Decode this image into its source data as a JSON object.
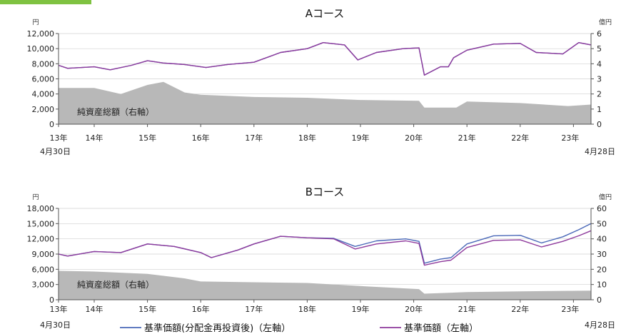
{
  "colors": {
    "nav_line": "#4a68b8",
    "price_line": "#8e3a9c",
    "net_assets_area": "#b8b8b8",
    "axis": "#555555",
    "grid": "#d0d0d0",
    "corner_tab": "#7fc241"
  },
  "legend": {
    "nav_reinvested": "基準価額(分配金再投資後)（左軸）",
    "nav": "基準価額（左軸）"
  },
  "chart_data": [
    {
      "type": "line",
      "title": "Aコース",
      "left_unit": "円",
      "right_unit": "億円",
      "area_label": "純資産総額（右軸）",
      "start_label": "4月30日",
      "end_label": "4月28日",
      "x_tick_labels": [
        "13年",
        "14年",
        "15年",
        "16年",
        "17年",
        "18年",
        "19年",
        "20年",
        "21年",
        "22年",
        "23年"
      ],
      "x_ticks": [
        2013.33,
        2014,
        2015,
        2016,
        2017,
        2018,
        2019,
        2020,
        2021,
        2022,
        2023
      ],
      "x_range": [
        2013.33,
        2023.33
      ],
      "ylim_left": [
        0,
        12000
      ],
      "yticks_left": [
        0,
        2000,
        4000,
        6000,
        8000,
        10000,
        12000
      ],
      "ytick_labels_left": [
        "0",
        "2,000",
        "4,000",
        "6,000",
        "8,000",
        "10,000",
        "12,000"
      ],
      "ylim_right": [
        0,
        6
      ],
      "yticks_right": [
        0,
        1,
        2,
        3,
        4,
        5,
        6
      ],
      "ytick_labels_right": [
        "0",
        "1",
        "2",
        "3",
        "4",
        "5",
        "6"
      ],
      "series": [
        {
          "key": "nav_reinvested",
          "axis": "left",
          "x": [
            2013.33,
            2013.5,
            2014,
            2014.3,
            2014.7,
            2015,
            2015.3,
            2015.7,
            2016.1,
            2016.5,
            2017,
            2017.5,
            2018,
            2018.3,
            2018.7,
            2018.95,
            2019.3,
            2019.8,
            2020.1,
            2020.2,
            2020.5,
            2020.65,
            2020.75,
            2021,
            2021.5,
            2022,
            2022.3,
            2022.8,
            2023.1,
            2023.33
          ],
          "y": [
            7800,
            7400,
            7600,
            7200,
            7800,
            8400,
            8100,
            7900,
            7500,
            7900,
            8200,
            9500,
            10000,
            10800,
            10500,
            8500,
            9500,
            10000,
            10100,
            6500,
            7600,
            7600,
            8800,
            9800,
            10600,
            10700,
            9500,
            9300,
            10800,
            10500
          ]
        },
        {
          "key": "nav",
          "axis": "left",
          "x": [
            2013.33,
            2013.5,
            2014,
            2014.3,
            2014.7,
            2015,
            2015.3,
            2015.7,
            2016.1,
            2016.5,
            2017,
            2017.5,
            2018,
            2018.3,
            2018.7,
            2018.95,
            2019.3,
            2019.8,
            2020.1,
            2020.2,
            2020.5,
            2020.65,
            2020.75,
            2021,
            2021.5,
            2022,
            2022.3,
            2022.8,
            2023.1,
            2023.33
          ],
          "y": [
            7800,
            7400,
            7600,
            7200,
            7800,
            8400,
            8100,
            7900,
            7500,
            7900,
            8200,
            9500,
            10000,
            10800,
            10500,
            8500,
            9500,
            10000,
            10100,
            6500,
            7600,
            7600,
            8800,
            9800,
            10600,
            10700,
            9500,
            9300,
            10800,
            10500
          ]
        },
        {
          "key": "net_assets",
          "axis": "right",
          "x": [
            2013.33,
            2014,
            2014.5,
            2015,
            2015.3,
            2015.7,
            2016,
            2017,
            2018,
            2019,
            2020.1,
            2020.2,
            2020.8,
            2021,
            2022,
            2022.9,
            2023.33
          ],
          "y": [
            2.4,
            2.4,
            2.0,
            2.6,
            2.8,
            2.1,
            1.95,
            1.8,
            1.75,
            1.6,
            1.55,
            1.1,
            1.1,
            1.5,
            1.4,
            1.2,
            1.3
          ]
        }
      ]
    },
    {
      "type": "line",
      "title": "Bコース",
      "left_unit": "円",
      "right_unit": "億円",
      "area_label": "純資産総額（右軸）",
      "start_label": "4月30日",
      "end_label": "4月28日",
      "x_tick_labels": [
        "13年",
        "14年",
        "15年",
        "16年",
        "17年",
        "18年",
        "19年",
        "20年",
        "21年",
        "22年",
        "23年"
      ],
      "x_ticks": [
        2013.33,
        2014,
        2015,
        2016,
        2017,
        2018,
        2019,
        2020,
        2021,
        2022,
        2023
      ],
      "x_range": [
        2013.33,
        2023.33
      ],
      "ylim_left": [
        0,
        18000
      ],
      "yticks_left": [
        0,
        3000,
        6000,
        9000,
        12000,
        15000,
        18000
      ],
      "ytick_labels_left": [
        "0",
        "3,000",
        "6,000",
        "9,000",
        "12,000",
        "15,000",
        "18,000"
      ],
      "ylim_right": [
        0,
        60
      ],
      "yticks_right": [
        0,
        10,
        20,
        30,
        40,
        50,
        60
      ],
      "ytick_labels_right": [
        "0",
        "10",
        "20",
        "30",
        "40",
        "50",
        "60"
      ],
      "series": [
        {
          "key": "nav_reinvested",
          "axis": "left",
          "x": [
            2013.33,
            2013.5,
            2014,
            2014.5,
            2015,
            2015.5,
            2016,
            2016.2,
            2016.7,
            2017,
            2017.5,
            2018,
            2018.5,
            2018.9,
            2019.3,
            2019.85,
            2020.1,
            2020.2,
            2020.5,
            2020.7,
            2021,
            2021.5,
            2022,
            2022.4,
            2022.8,
            2023.1,
            2023.33
          ],
          "y": [
            9000,
            8600,
            9500,
            9300,
            11000,
            10500,
            9300,
            8300,
            9800,
            11000,
            12500,
            12200,
            12100,
            10500,
            11600,
            12000,
            11500,
            7200,
            8000,
            8300,
            11000,
            12600,
            12700,
            11200,
            12400,
            13800,
            15000
          ]
        },
        {
          "key": "nav",
          "axis": "left",
          "x": [
            2013.33,
            2013.5,
            2014,
            2014.5,
            2015,
            2015.5,
            2016,
            2016.2,
            2016.7,
            2017,
            2017.5,
            2018,
            2018.5,
            2018.9,
            2019.3,
            2019.85,
            2020.1,
            2020.2,
            2020.5,
            2020.7,
            2021,
            2021.5,
            2022,
            2022.4,
            2022.8,
            2023.1,
            2023.33
          ],
          "y": [
            9000,
            8600,
            9500,
            9300,
            11000,
            10500,
            9300,
            8300,
            9800,
            11000,
            12500,
            12200,
            12000,
            10000,
            11000,
            11600,
            11100,
            6800,
            7500,
            7800,
            10300,
            11700,
            11800,
            10400,
            11500,
            12600,
            13600
          ]
        },
        {
          "key": "net_assets",
          "axis": "right",
          "x": [
            2013.33,
            2014,
            2015,
            2015.7,
            2016,
            2017,
            2018,
            2019,
            2020.1,
            2020.2,
            2021,
            2022,
            2023.33
          ],
          "y": [
            19,
            18.5,
            17,
            14,
            12,
            11.5,
            11,
            9,
            7,
            4,
            5,
            5.5,
            6
          ]
        }
      ]
    }
  ]
}
